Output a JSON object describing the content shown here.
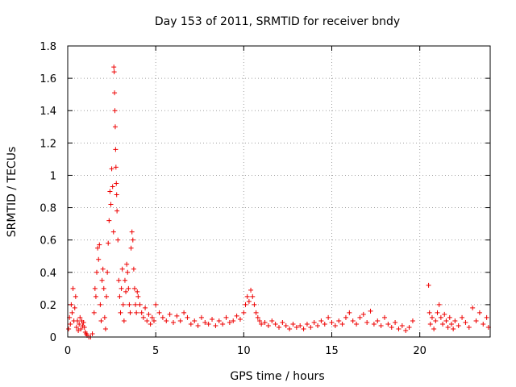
{
  "chart_data": {
    "type": "scatter",
    "title": "Day 153 of 2011, SRMTID for receiver bndy",
    "xlabel": "GPS time / hours",
    "ylabel": "SRMTID / TECUs",
    "xlim": [
      0,
      24
    ],
    "ylim": [
      0,
      1.8
    ],
    "xticks": [
      0,
      5,
      10,
      15,
      20
    ],
    "xtick_labels": [
      "0",
      "5",
      "10",
      "15",
      "20"
    ],
    "yticks": [
      0,
      0.2,
      0.4,
      0.6,
      0.8,
      1.0,
      1.2,
      1.4,
      1.6,
      1.8
    ],
    "ytick_labels": [
      "0",
      "0.2",
      "0.4",
      "0.6",
      "0.8",
      "1",
      "1.2",
      "1.4",
      "1.6",
      "1.8"
    ],
    "grid": true,
    "marker": "+",
    "color": "#ee0000",
    "series": [
      {
        "name": "SRMTID",
        "x": [
          0.05,
          0.1,
          0.15,
          0.2,
          0.25,
          0.3,
          0.35,
          0.4,
          0.45,
          0.5,
          0.55,
          0.6,
          0.65,
          0.7,
          0.75,
          0.8,
          0.85,
          0.9,
          0.95,
          1.0,
          1.05,
          1.1,
          1.2,
          1.3,
          1.4,
          1.5,
          1.55,
          1.6,
          1.65,
          1.7,
          1.75,
          1.8,
          1.85,
          1.9,
          1.95,
          2.0,
          2.05,
          2.1,
          2.15,
          2.2,
          2.25,
          2.3,
          2.35,
          2.4,
          2.45,
          2.5,
          2.55,
          2.6,
          2.62,
          2.64,
          2.66,
          2.68,
          2.7,
          2.72,
          2.74,
          2.76,
          2.78,
          2.8,
          2.85,
          2.9,
          2.95,
          3.0,
          3.05,
          3.1,
          3.15,
          3.2,
          3.25,
          3.3,
          3.35,
          3.4,
          3.45,
          3.5,
          3.55,
          3.6,
          3.65,
          3.7,
          3.75,
          3.8,
          3.85,
          3.9,
          3.95,
          4.0,
          4.1,
          4.2,
          4.3,
          4.4,
          4.5,
          4.6,
          4.7,
          4.8,
          4.9,
          5.0,
          5.2,
          5.4,
          5.6,
          5.8,
          6.0,
          6.2,
          6.4,
          6.6,
          6.8,
          7.0,
          7.2,
          7.4,
          7.6,
          7.8,
          8.0,
          8.2,
          8.4,
          8.6,
          8.8,
          9.0,
          9.2,
          9.4,
          9.6,
          9.8,
          10.0,
          10.1,
          10.2,
          10.3,
          10.4,
          10.5,
          10.6,
          10.7,
          10.8,
          10.9,
          11.0,
          11.2,
          11.4,
          11.6,
          11.8,
          12.0,
          12.2,
          12.4,
          12.6,
          12.8,
          13.0,
          13.2,
          13.4,
          13.6,
          13.8,
          14.0,
          14.2,
          14.4,
          14.6,
          14.8,
          15.0,
          15.2,
          15.4,
          15.6,
          15.8,
          16.0,
          16.2,
          16.4,
          16.6,
          16.8,
          17.0,
          17.2,
          17.4,
          17.6,
          17.8,
          18.0,
          18.2,
          18.4,
          18.6,
          18.8,
          19.0,
          19.2,
          19.4,
          19.6,
          20.5,
          20.55,
          20.6,
          20.7,
          20.8,
          20.9,
          21.0,
          21.1,
          21.2,
          21.3,
          21.4,
          21.5,
          21.6,
          21.7,
          21.8,
          21.9,
          22.0,
          22.2,
          22.4,
          22.6,
          22.8,
          23.0,
          23.2,
          23.4,
          23.6,
          23.8,
          23.9
        ],
        "y": [
          0.05,
          0.12,
          0.08,
          0.2,
          0.15,
          0.3,
          0.1,
          0.18,
          0.25,
          0.06,
          0.1,
          0.04,
          0.08,
          0.12,
          0.05,
          0.1,
          0.07,
          0.09,
          0.06,
          0.03,
          0.02,
          0.01,
          0.0,
          0.0,
          0.02,
          0.15,
          0.3,
          0.25,
          0.4,
          0.55,
          0.48,
          0.57,
          0.2,
          0.1,
          0.35,
          0.42,
          0.3,
          0.12,
          0.05,
          0.25,
          0.4,
          0.58,
          0.72,
          0.9,
          0.82,
          1.04,
          0.93,
          0.65,
          1.67,
          1.64,
          1.51,
          1.4,
          1.3,
          1.16,
          1.05,
          0.95,
          0.88,
          0.78,
          0.6,
          0.35,
          0.25,
          0.15,
          0.3,
          0.42,
          0.2,
          0.1,
          0.35,
          0.28,
          0.45,
          0.4,
          0.3,
          0.2,
          0.15,
          0.55,
          0.65,
          0.6,
          0.42,
          0.3,
          0.2,
          0.15,
          0.28,
          0.25,
          0.2,
          0.15,
          0.12,
          0.18,
          0.1,
          0.14,
          0.08,
          0.12,
          0.1,
          0.2,
          0.15,
          0.12,
          0.1,
          0.14,
          0.09,
          0.13,
          0.1,
          0.15,
          0.12,
          0.08,
          0.1,
          0.07,
          0.12,
          0.09,
          0.08,
          0.11,
          0.07,
          0.1,
          0.08,
          0.12,
          0.09,
          0.1,
          0.13,
          0.11,
          0.15,
          0.2,
          0.25,
          0.22,
          0.29,
          0.25,
          0.2,
          0.15,
          0.12,
          0.1,
          0.08,
          0.09,
          0.07,
          0.1,
          0.08,
          0.06,
          0.09,
          0.07,
          0.05,
          0.08,
          0.06,
          0.07,
          0.05,
          0.08,
          0.06,
          0.09,
          0.07,
          0.1,
          0.08,
          0.12,
          0.09,
          0.07,
          0.1,
          0.08,
          0.12,
          0.15,
          0.1,
          0.08,
          0.12,
          0.14,
          0.09,
          0.16,
          0.08,
          0.1,
          0.07,
          0.12,
          0.08,
          0.06,
          0.09,
          0.05,
          0.07,
          0.04,
          0.06,
          0.1,
          0.32,
          0.15,
          0.08,
          0.12,
          0.05,
          0.1,
          0.15,
          0.2,
          0.12,
          0.08,
          0.14,
          0.1,
          0.06,
          0.12,
          0.08,
          0.05,
          0.1,
          0.07,
          0.12,
          0.09,
          0.06,
          0.18,
          0.1,
          0.15,
          0.08,
          0.12,
          0.06
        ]
      }
    ]
  }
}
